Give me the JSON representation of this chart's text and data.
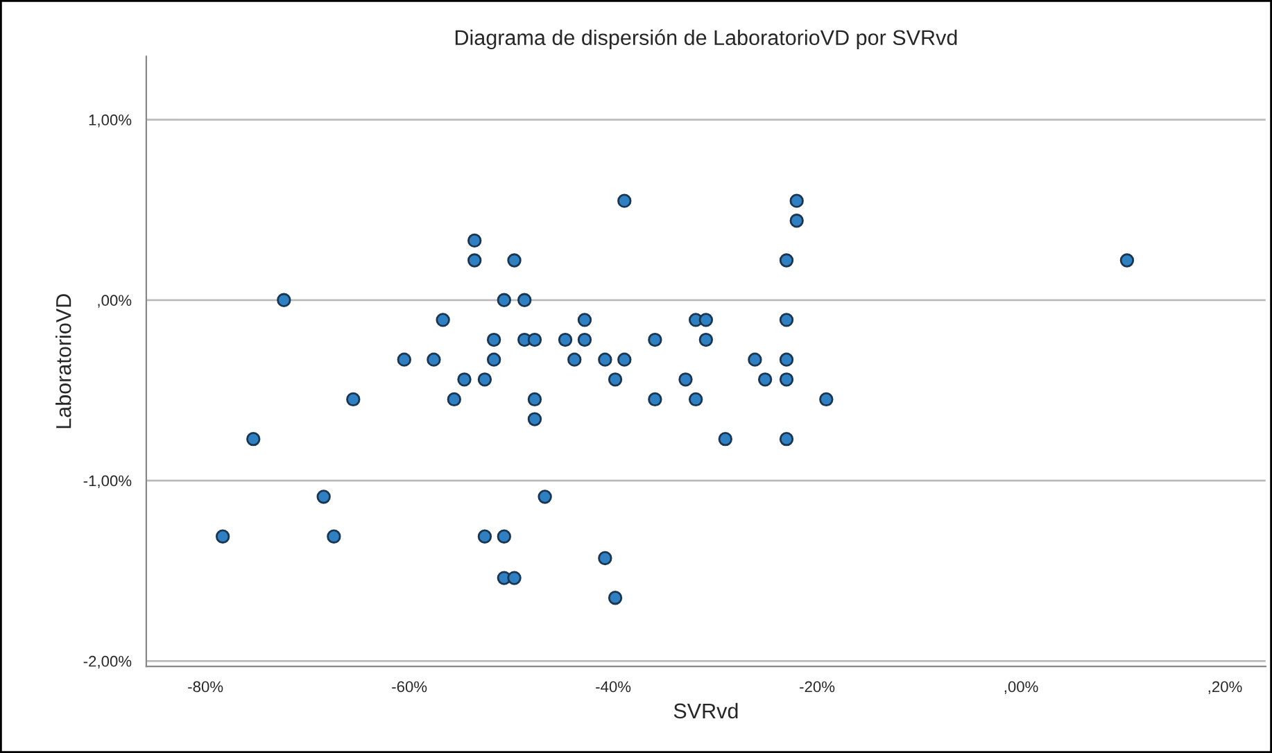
{
  "chart_data": {
    "type": "scatter",
    "title": "Diagrama de dispersión de LaboratorioVD por SVRvd",
    "xlabel": "SVRvd",
    "ylabel": "LaboratorioVD",
    "x": [
      -72.3,
      -53.6,
      -53.6,
      -49.7,
      -50.7,
      -48.7,
      -56.7,
      -51.7,
      -48.7,
      -47.7,
      -60.5,
      -57.6,
      -51.7,
      -54.6,
      -52.6,
      -65.5,
      -55.6,
      -47.7,
      -47.7,
      -75.3,
      -68.4,
      -46.7,
      -78.3,
      -67.4,
      -52.6,
      -50.7,
      -50.7,
      -49.7,
      -38.9,
      -22.0,
      -22.0,
      -23.0,
      -42.8,
      -31.9,
      -30.9,
      -23.0,
      -44.7,
      -42.8,
      -35.9,
      -30.9,
      -43.8,
      -40.8,
      -38.9,
      -26.1,
      -23.0,
      -39.8,
      -32.9,
      -25.1,
      -23.0,
      -35.9,
      -31.9,
      -19.1,
      -29.0,
      -23.0,
      -40.8,
      -39.8,
      10.4
    ],
    "series": [
      {
        "color": "#2f80c3",
        "values": [
          0.0,
          0.33,
          0.22,
          0.22,
          0.0,
          0.0,
          -0.11,
          -0.22,
          -0.22,
          -0.22,
          -0.33,
          -0.33,
          -0.33,
          -0.44,
          -0.44,
          -0.55,
          -0.55,
          -0.55,
          -0.66,
          -0.77,
          -1.09,
          -1.09,
          -1.31,
          -1.31,
          -1.31,
          -1.31,
          -1.54,
          -1.54,
          0.55,
          0.55,
          0.44,
          0.22,
          -0.11,
          -0.11,
          -0.11,
          -0.11,
          -0.22,
          -0.22,
          -0.22,
          -0.22,
          -0.33,
          -0.33,
          -0.33,
          -0.33,
          -0.33,
          -0.44,
          -0.44,
          -0.44,
          -0.44,
          -0.55,
          -0.55,
          -0.55,
          -0.77,
          -0.77,
          -1.43,
          -1.65,
          0.22
        ]
      }
    ],
    "xlim": [
      -85.8,
      24.0
    ],
    "ylim": [
      -2.03,
      1.35
    ],
    "xticks": [
      {
        "value": -80,
        "label": "-80%"
      },
      {
        "value": -60,
        "label": "-60%"
      },
      {
        "value": -40,
        "label": "-40%"
      },
      {
        "value": -20,
        "label": "-20%"
      },
      {
        "value": 0,
        "label": ",00%"
      },
      {
        "value": 20,
        "label": ",20%"
      }
    ],
    "yticks": [
      {
        "value": -2,
        "label": "-2,00%"
      },
      {
        "value": -1,
        "label": "-1,00%"
      },
      {
        "value": 0,
        "label": ",00%"
      },
      {
        "value": 1,
        "label": "1,00%"
      }
    ],
    "grid": "y",
    "marker": "circle"
  }
}
